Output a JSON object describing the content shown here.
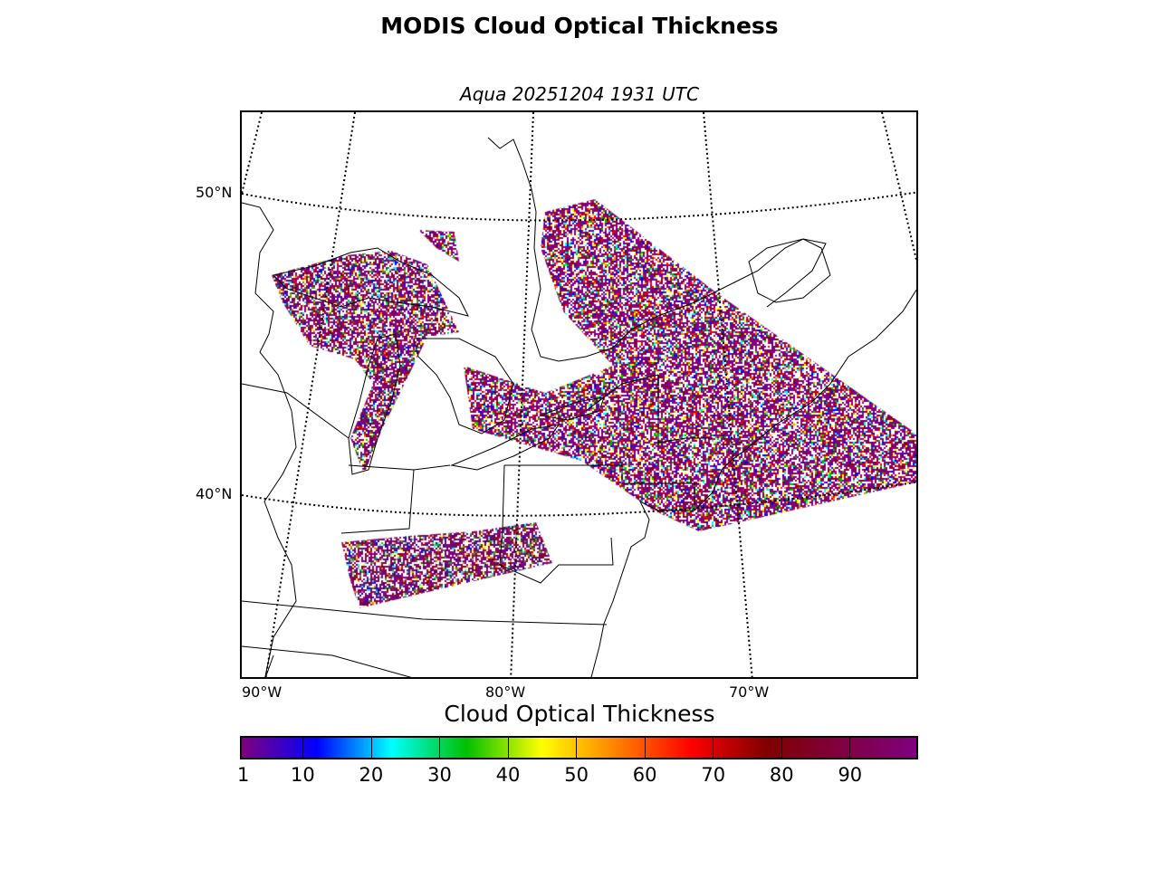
{
  "title": "MODIS Cloud Optical Thickness",
  "subtitle": "Aqua 20251204 1931 UTC",
  "map": {
    "lat_labels": [
      "50°N",
      "40°N"
    ],
    "lon_labels": [
      "90°W",
      "80°W",
      "70°W"
    ],
    "region": "Great Lakes and Northeastern United States / Southeastern Canada"
  },
  "colorbar": {
    "title": "Cloud Optical Thickness",
    "range": [
      1,
      100
    ],
    "ticks": [
      "1",
      "10",
      "20",
      "30",
      "40",
      "50",
      "60",
      "70",
      "80",
      "90"
    ],
    "colors": [
      "#800080",
      "#0000ff",
      "#00ffff",
      "#00c000",
      "#ffff00",
      "#ff8000",
      "#ff0000",
      "#800000",
      "#800040",
      "#800080"
    ]
  }
}
